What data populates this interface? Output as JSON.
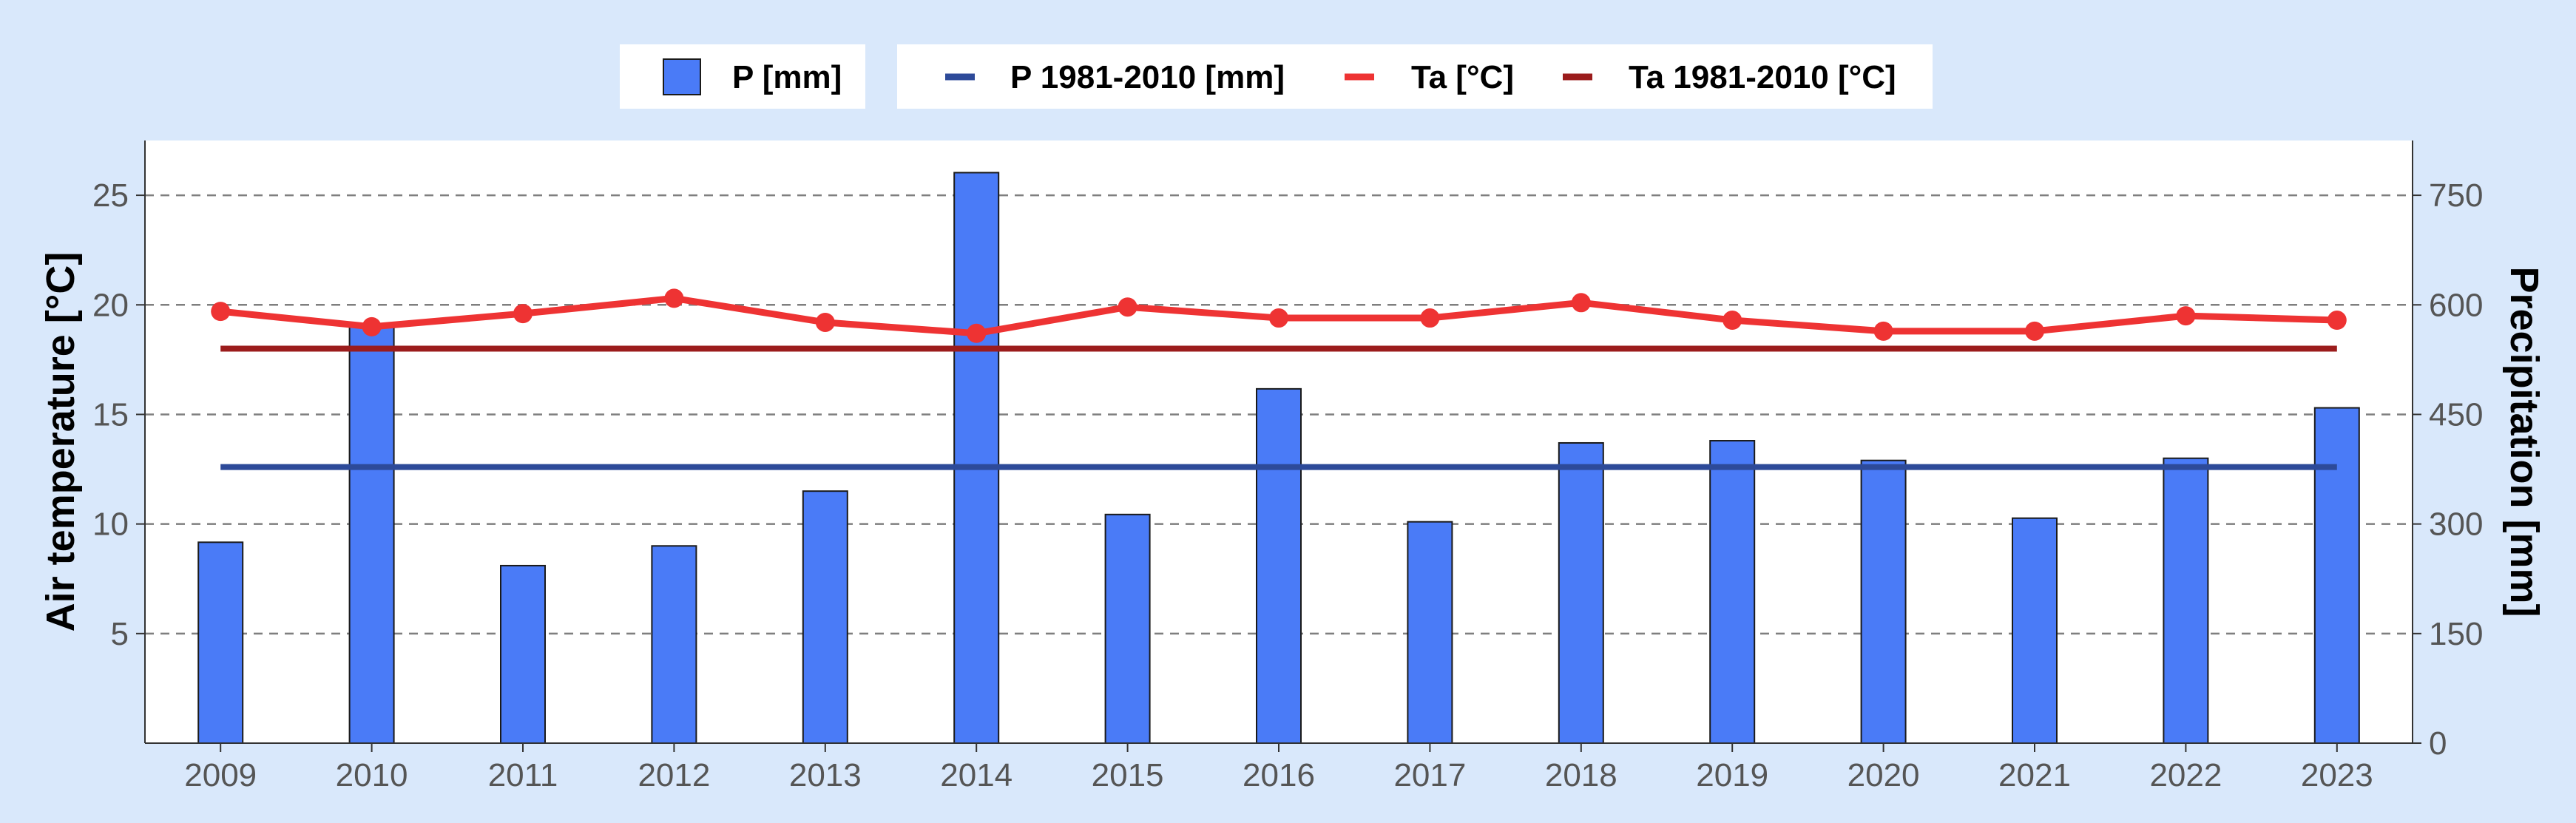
{
  "chart_data": {
    "type": "bar+line",
    "categories": [
      "2009",
      "2010",
      "2011",
      "2012",
      "2013",
      "2014",
      "2015",
      "2016",
      "2017",
      "2018",
      "2019",
      "2020",
      "2021",
      "2022",
      "2023"
    ],
    "series": [
      {
        "name": "P [mm]",
        "type": "bar",
        "axis": "right",
        "color": "#4a7bf7",
        "values": [
          275,
          570,
          243,
          270,
          345,
          781,
          313,
          485,
          303,
          411,
          414,
          387,
          308,
          390,
          459
        ]
      },
      {
        "name": "P 1981-2010 [mm]",
        "type": "line",
        "axis": "right",
        "color": "#2d4a99",
        "values": [
          378,
          378,
          378,
          378,
          378,
          378,
          378,
          378,
          378,
          378,
          378,
          378,
          378,
          378,
          378
        ]
      },
      {
        "name": "Ta [°C]",
        "type": "line",
        "axis": "left",
        "color": "#ee3333",
        "markers": true,
        "values": [
          19.7,
          19.0,
          19.6,
          20.3,
          19.2,
          18.7,
          19.9,
          19.4,
          19.4,
          20.1,
          19.3,
          18.8,
          18.8,
          19.5,
          19.3
        ]
      },
      {
        "name": "Ta 1981-2010 [°C]",
        "type": "line",
        "axis": "left",
        "color": "#9b1c1c",
        "values": [
          18.0,
          18.0,
          18.0,
          18.0,
          18.0,
          18.0,
          18.0,
          18.0,
          18.0,
          18.0,
          18.0,
          18.0,
          18.0,
          18.0,
          18.0
        ]
      }
    ],
    "ylabel": "Air temperature [°C]",
    "ylabel_right": "Precipitation [mm]",
    "ylim": [
      0,
      27.5
    ],
    "ylim_right": [
      0,
      825
    ],
    "yticks": [
      5,
      10,
      15,
      20,
      25
    ],
    "yticks_right": [
      0,
      150,
      300,
      450,
      600,
      750
    ],
    "grid": "horizontal-dashed",
    "legend_position": "top"
  }
}
